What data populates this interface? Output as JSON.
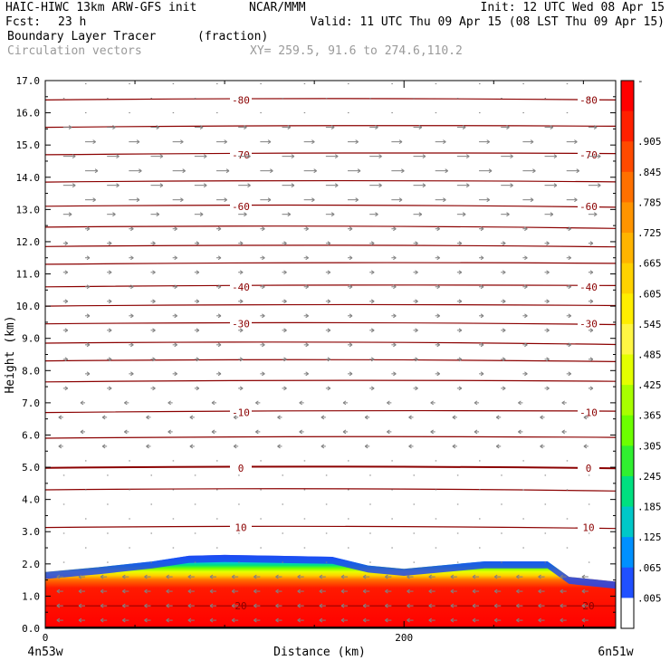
{
  "header": {
    "model": "HAIC-HIWC 13km ARW-GFS init",
    "org": "NCAR/MMM",
    "init": "Init: 12 UTC Wed 08 Apr 15",
    "fcst_label": "Fcst:",
    "fcst_value": "23 h",
    "valid": "Valid: 11 UTC Thu 09 Apr 15 (08 LST Thu 09 Apr 15)",
    "field": "Boundary Layer Tracer",
    "units": "(fraction)",
    "vectors": "Circulation vectors",
    "xy": "XY= 259.5, 91.6 to 274.6,110.2"
  },
  "chart_data": {
    "type": "heatmap",
    "xlabel": "Distance (km)",
    "ylabel": "Height (km)",
    "xlim": [
      0,
      318
    ],
    "ylim": [
      0,
      17
    ],
    "x_ticks": [
      0,
      200
    ],
    "x_tick_labels": [
      "0",
      "200"
    ],
    "x_end_labels": [
      "4n53w",
      "6n51w"
    ],
    "y_ticks": [
      0,
      1,
      2,
      3,
      4,
      5,
      6,
      7,
      8,
      9,
      10,
      11,
      12,
      13,
      14,
      15,
      16,
      17
    ],
    "y_tick_labels": [
      "0.0",
      "1.0",
      "2.0",
      "3.0",
      "4.0",
      "5.0",
      "6.0",
      "7.0",
      "8.0",
      "9.0",
      "10.0",
      "11.0",
      "12.0",
      "13.0",
      "14.0",
      "15.0",
      "16.0",
      "17.0"
    ],
    "colorbar": {
      "labels": [
        "-",
        ".905",
        ".845",
        ".785",
        ".725",
        ".665",
        ".605",
        ".545",
        ".485",
        ".425",
        ".365",
        ".305",
        ".245",
        ".185",
        ".125",
        ".065",
        ".005"
      ],
      "colors": [
        "#ff0000",
        "#ff2000",
        "#ff4a00",
        "#ff7000",
        "#ff9400",
        "#ffb400",
        "#ffd200",
        "#ffee00",
        "#fff644",
        "#e4ff00",
        "#a8ff00",
        "#6cff00",
        "#30f030",
        "#00e080",
        "#00c8c8",
        "#0090ff",
        "#2050ff",
        "#ffffff"
      ]
    },
    "temperature_labels": [
      {
        "value": "-80",
        "height": 16.4
      },
      {
        "value": "-70",
        "height": 14.7
      },
      {
        "value": "-60",
        "height": 13.1
      },
      {
        "value": "-40",
        "height": 10.6
      },
      {
        "value": "-30",
        "height": 9.45
      },
      {
        "value": "-10",
        "height": 6.7
      },
      {
        "value": "0",
        "height": 4.98
      },
      {
        "value": "10",
        "height": 3.13
      },
      {
        "value": "20",
        "height": 0.7
      }
    ],
    "isotherm_heights": [
      16.4,
      15.55,
      14.7,
      13.85,
      13.1,
      12.45,
      11.85,
      11.3,
      10.6,
      10.0,
      9.45,
      8.85,
      8.3,
      7.65,
      6.7,
      5.9,
      4.98,
      4.3,
      3.13
    ],
    "boundary_layer_top": [
      {
        "x": 0,
        "h": 1.75
      },
      {
        "x": 30,
        "h": 1.9
      },
      {
        "x": 60,
        "h": 2.08
      },
      {
        "x": 80,
        "h": 2.25
      },
      {
        "x": 100,
        "h": 2.28
      },
      {
        "x": 130,
        "h": 2.25
      },
      {
        "x": 160,
        "h": 2.22
      },
      {
        "x": 180,
        "h": 1.95
      },
      {
        "x": 200,
        "h": 1.85
      },
      {
        "x": 220,
        "h": 1.95
      },
      {
        "x": 245,
        "h": 2.08
      },
      {
        "x": 280,
        "h": 2.08
      },
      {
        "x": 292,
        "h": 1.6
      },
      {
        "x": 318,
        "h": 1.45
      }
    ]
  }
}
